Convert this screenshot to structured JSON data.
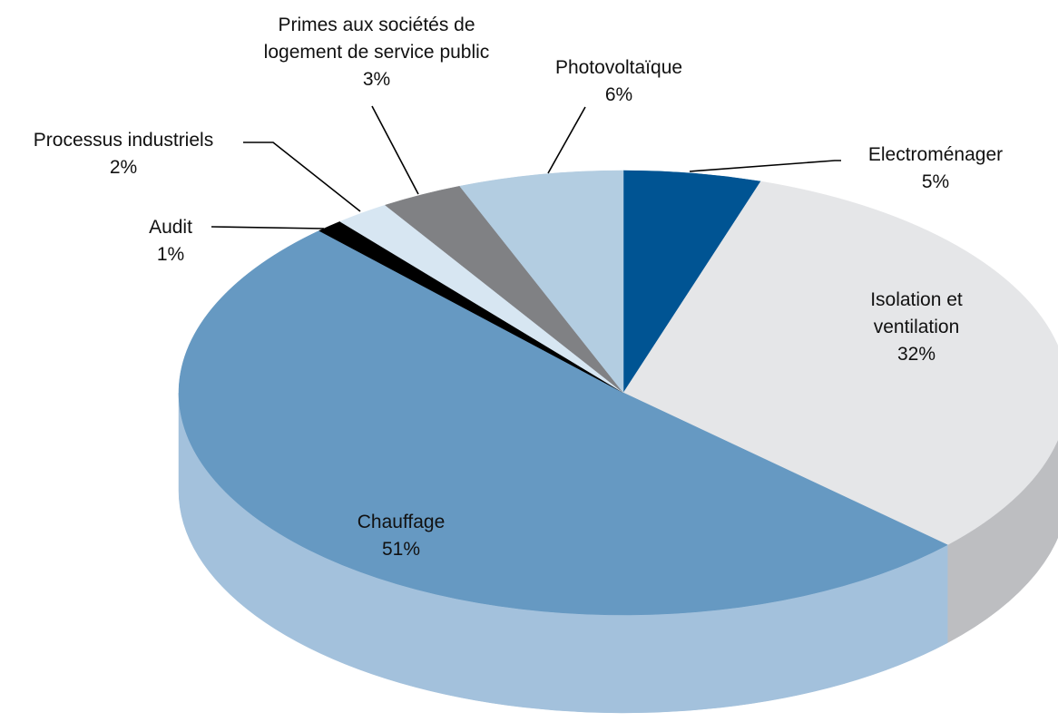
{
  "chart_data": {
    "type": "pie",
    "style": "3d",
    "slices": [
      {
        "label_lines": [
          "Electroménager"
        ],
        "pct_text": "5%",
        "value": 5,
        "color": "#005493",
        "side_color": "#004478"
      },
      {
        "label_lines": [
          "Isolation et",
          "ventilation"
        ],
        "pct_text": "32%",
        "value": 32,
        "color": "#e5e6e8",
        "side_color": "#bdbec1"
      },
      {
        "label_lines": [
          "Chauffage"
        ],
        "pct_text": "51%",
        "value": 51,
        "color": "#6699c2",
        "side_color": "#a3c1dc"
      },
      {
        "label_lines": [
          "Audit"
        ],
        "pct_text": "1%",
        "value": 1,
        "color": "#000000",
        "side_color": "#000000"
      },
      {
        "label_lines": [
          "Processus industriels"
        ],
        "pct_text": "2%",
        "value": 2,
        "color": "#d7e6f2",
        "side_color": "#b9cfe0"
      },
      {
        "label_lines": [
          "Primes aux sociétés de",
          "logement de service public"
        ],
        "pct_text": "3%",
        "value": 3,
        "color": "#808184",
        "side_color": "#66676a"
      },
      {
        "label_lines": [
          "Photovoltaïque"
        ],
        "pct_text": "6%",
        "value": 6,
        "color": "#b3cde1",
        "side_color": "#95b2c9"
      }
    ]
  }
}
